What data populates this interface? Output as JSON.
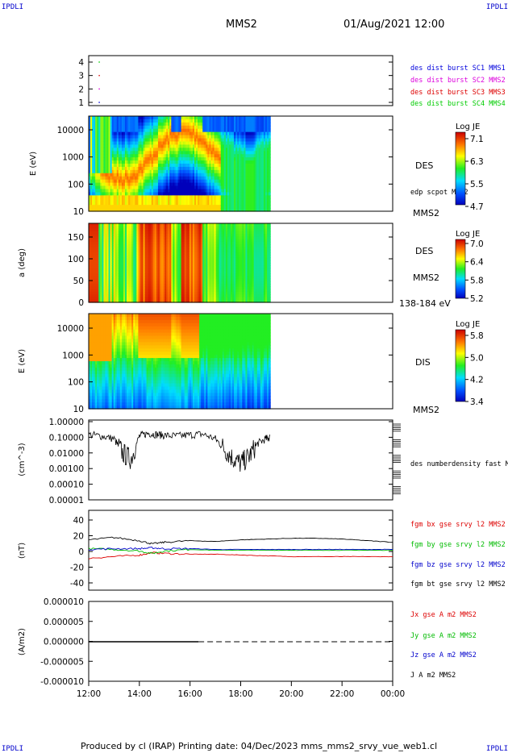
{
  "corner_labels": [
    "IPDLI",
    "IPDLI",
    "IPDLI",
    "IPDLI"
  ],
  "header": {
    "spacecraft": "MMS2",
    "datetime": "01/Aug/2021 12:00"
  },
  "footer": {
    "text": "Produced by cl (IRAP)   Printing date: 04/Dec/2023   mms_mms2_srvy_vue_web1.cl"
  },
  "colors": {
    "sc1": "#0000dd",
    "sc2": "#dd00dd",
    "sc3": "#dd0000",
    "sc4": "#00cc00",
    "bx": "#dd0000",
    "by": "#00bb00",
    "bz": "#0000cc",
    "bt": "#000000"
  },
  "x_axis": {
    "ticks": [
      "12:00",
      "14:00",
      "16:00",
      "18:00",
      "20:00",
      "22:00",
      "00:00"
    ]
  },
  "chart_data": [
    {
      "type": "scatter",
      "ylim": [
        0.5,
        4.5
      ],
      "yticks": [
        "4",
        "3",
        "2",
        "1"
      ],
      "series": [
        {
          "name": "des dist burst SC1 MMS1",
          "x": [
            "12:25"
          ],
          "y": [
            1
          ]
        },
        {
          "name": "des dist burst SC2 MMS2",
          "x": [
            "12:25"
          ],
          "y": [
            2
          ]
        },
        {
          "name": "des dist burst SC3 MMS3",
          "x": [
            "12:25"
          ],
          "y": [
            3
          ]
        },
        {
          "name": "des dist burst SC4 MMS4",
          "x": [
            "12:25"
          ],
          "y": [
            4
          ]
        }
      ]
    },
    {
      "type": "heatmap",
      "ylabel": "E (eV)",
      "yscale": "log",
      "ylim": [
        10,
        30000
      ],
      "yticks": [
        "10000",
        "1000",
        "100",
        "10"
      ],
      "data_end": "19:10",
      "instrument": "DES",
      "note": "edp scpot MMS2",
      "spacecraft": "MMS2",
      "colorbar": {
        "title": "Log JE",
        "ticks": [
          "7.1",
          "6.3",
          "5.5",
          "4.7"
        ],
        "range": [
          4.7,
          7.1
        ]
      }
    },
    {
      "type": "heatmap",
      "ylabel": "a (deg)",
      "ylim": [
        0,
        180
      ],
      "yticks": [
        "150",
        "100",
        "50",
        "0"
      ],
      "data_end": "19:10",
      "instrument": "DES",
      "spacecraft": "MMS2",
      "energy_range": "138-184 eV",
      "colorbar": {
        "title": "Log JE",
        "ticks": [
          "7.0",
          "6.4",
          "5.8",
          "5.2"
        ],
        "range": [
          5.2,
          7.0
        ]
      }
    },
    {
      "type": "heatmap",
      "ylabel": "E (eV)",
      "yscale": "log",
      "ylim": [
        10,
        30000
      ],
      "yticks": [
        "10000",
        "1000",
        "100",
        "10"
      ],
      "data_end": "19:10",
      "instrument": "DIS",
      "spacecraft": "MMS2",
      "colorbar": {
        "title": "Log JE",
        "ticks": [
          "5.8",
          "5.0",
          "4.2",
          "3.4"
        ],
        "range": [
          3.4,
          5.8
        ]
      }
    },
    {
      "type": "line",
      "ylabel": "(cm^-3)",
      "yscale": "log",
      "ylim": [
        0.0001,
        1.0
      ],
      "yticks": [
        "1.00000",
        "0.10000",
        "0.01000",
        "0.00100",
        "0.00010",
        "0.00001"
      ],
      "series": [
        {
          "name": "des numberdensity fast M",
          "x": [
            "12:00",
            "12:30",
            "13:00",
            "13:20",
            "13:40",
            "14:00",
            "14:20",
            "14:40",
            "15:00",
            "15:30",
            "16:00",
            "16:30",
            "17:00",
            "17:20",
            "17:40",
            "18:00",
            "18:20",
            "18:40",
            "19:00",
            "19:10"
          ],
          "y": [
            0.15,
            0.12,
            0.08,
            0.01,
            0.004,
            0.12,
            0.18,
            0.15,
            0.13,
            0.12,
            0.14,
            0.16,
            0.08,
            0.02,
            0.005,
            0.002,
            0.006,
            0.04,
            0.08,
            0.1
          ]
        }
      ]
    },
    {
      "type": "line",
      "ylabel": "(nT)",
      "ylim": [
        -50,
        50
      ],
      "yticks": [
        "40",
        "20",
        "0",
        "-20",
        "-40"
      ],
      "x": [
        "12:00",
        "13:00",
        "14:00",
        "14:30",
        "15:00",
        "16:00",
        "17:00",
        "18:00",
        "19:00",
        "20:00",
        "21:00",
        "22:00",
        "23:00",
        "00:00"
      ],
      "series": [
        {
          "name": "fgm bx gse srvy l2 MMS2",
          "values": [
            -10,
            -8,
            -6,
            -3,
            -4,
            -5,
            -5,
            -6,
            -7,
            -8,
            -8,
            -8,
            -8,
            -8
          ]
        },
        {
          "name": "fgm by gse srvy l2 MMS2",
          "values": [
            2,
            1,
            -1,
            -4,
            -1,
            1,
            0,
            0,
            0,
            0,
            0,
            0,
            0,
            0
          ]
        },
        {
          "name": "fgm bz gse srvy l2 MMS2",
          "values": [
            1,
            2,
            2,
            3,
            2,
            2,
            1,
            1,
            1,
            1,
            1,
            1,
            1,
            1
          ]
        },
        {
          "name": "fgm bt gse srvy l2 MMS2",
          "values": [
            13,
            16,
            12,
            8,
            10,
            12,
            11,
            13,
            14,
            15,
            15,
            14,
            12,
            10
          ]
        }
      ]
    },
    {
      "type": "line",
      "ylabel": "(A/m2)",
      "ylim": [
        -0.0001,
        0.0001
      ],
      "yticks": [
        "0.000010",
        "0.000005",
        "0.000000",
        "-0.000005",
        "-0.000010"
      ],
      "x": [
        "12:00",
        "16:20",
        "00:00"
      ],
      "series": [
        {
          "name": "Jx gse A m2 MMS2",
          "values": [
            0,
            0,
            0
          ]
        },
        {
          "name": "Jy gse A m2 MMS2",
          "values": [
            0,
            0,
            0
          ]
        },
        {
          "name": "Jz gse A m2 MMS2",
          "values": [
            0,
            0,
            0
          ]
        },
        {
          "name": "J A m2 MMS2",
          "values": [
            0,
            0,
            0
          ]
        }
      ]
    }
  ]
}
